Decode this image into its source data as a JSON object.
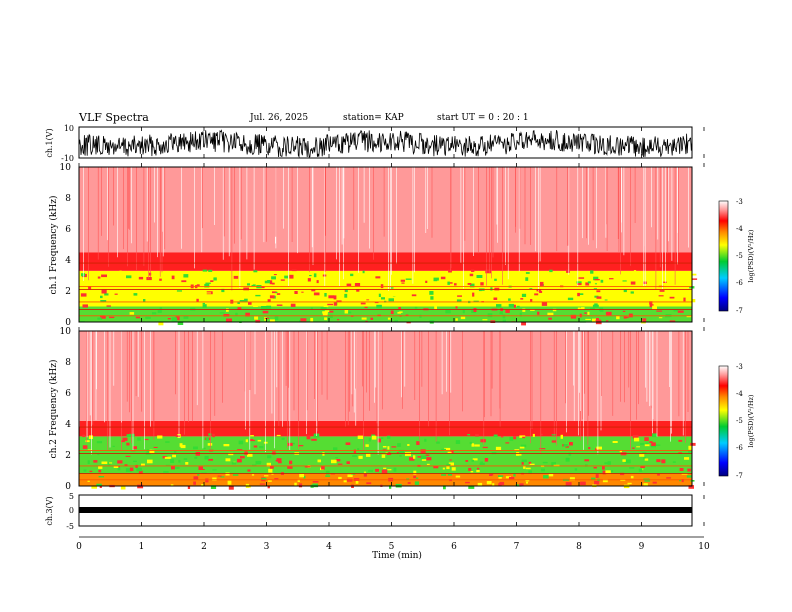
{
  "header": {
    "title": "VLF Spectra",
    "date": "Jul. 26, 2025",
    "station": "station= KAP",
    "start_ut": "start UT =  0 : 20 : 1"
  },
  "chart_data": [
    {
      "type": "line",
      "panel": "ch.1 waveform",
      "ylabel": "ch.1(V)",
      "ylim": [
        -10,
        10
      ],
      "yticks": [
        "10",
        "-10"
      ],
      "description_values": "dense oscillating signal between about -8 and 8 V"
    },
    {
      "type": "heatmap",
      "panel": "ch.1 spectrogram",
      "ylabel": "ch.1 Frequency (kHz)",
      "ylim": [
        0,
        10
      ],
      "yticks": [
        "0",
        "2",
        "4",
        "6",
        "8",
        "10"
      ],
      "colorbar": {
        "label": "log(PSD)(V²/Hz)",
        "ticks": [
          "-3",
          "-4",
          "-5",
          "-6",
          "-7"
        ],
        "range": [
          -7,
          -3
        ]
      },
      "bands": [
        {
          "from_khz": 0,
          "to_khz": 1,
          "level": -5.2
        },
        {
          "from_khz": 1,
          "to_khz": 3.3,
          "level": -4.9
        },
        {
          "from_khz": 3.3,
          "to_khz": 4.5,
          "level": -4.2
        },
        {
          "from_khz": 4.5,
          "to_khz": 10,
          "level": -3.6
        }
      ]
    },
    {
      "type": "heatmap",
      "panel": "ch.2 spectrogram",
      "ylabel": "ch.2 Frequency (kHz)",
      "ylim": [
        0,
        10
      ],
      "yticks": [
        "0",
        "2",
        "4",
        "6",
        "8",
        "10"
      ],
      "colorbar": {
        "label": "log(PSD)(V²/Hz)",
        "ticks": [
          "-3",
          "-4",
          "-5",
          "-6",
          "-7"
        ],
        "range": [
          -7,
          -3
        ]
      },
      "bands": [
        {
          "from_khz": 0,
          "to_khz": 0.8,
          "level": -4.7
        },
        {
          "from_khz": 0.8,
          "to_khz": 3.2,
          "level": -5.1
        },
        {
          "from_khz": 3.2,
          "to_khz": 4.2,
          "level": -4.2
        },
        {
          "from_khz": 4.2,
          "to_khz": 10,
          "level": -3.6
        }
      ]
    },
    {
      "type": "line",
      "panel": "ch.3 waveform",
      "ylabel": "ch.3(V)",
      "ylim": [
        -5,
        5
      ],
      "yticks": [
        "5",
        "0",
        "-5"
      ],
      "description_values": "steady band near 0 V"
    }
  ],
  "xaxis": {
    "label": "Time (min)",
    "range": [
      0,
      10
    ],
    "ticks": [
      "0",
      "1",
      "2",
      "3",
      "4",
      "5",
      "6",
      "7",
      "8",
      "9",
      "10"
    ]
  },
  "colors": {
    "red": "#ff1a1a",
    "light_red": "#ff9999",
    "yellow": "#ffff00",
    "green": "#33dd33"
  }
}
